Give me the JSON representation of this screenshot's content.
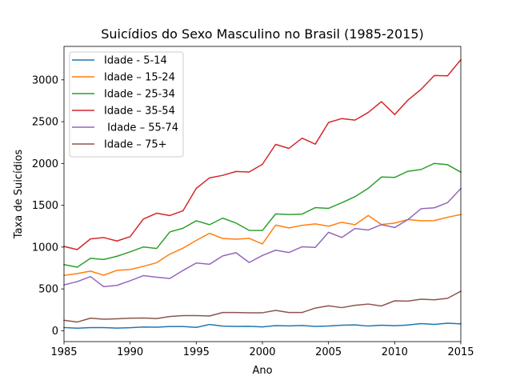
{
  "chart_data": {
    "type": "line",
    "title": "Suicídios do Sexo Masculino no Brasil (1985-2015)",
    "xlabel": "Ano",
    "ylabel": "Taxa de Suicídios",
    "xlim": [
      1985,
      2015
    ],
    "ylim": [
      -130,
      3400
    ],
    "xticks": [
      1985,
      1990,
      1995,
      2000,
      2005,
      2010,
      2015
    ],
    "yticks": [
      0,
      500,
      1000,
      1500,
      2000,
      2500,
      3000
    ],
    "grid": false,
    "legend_position": "top-left",
    "x": [
      1985,
      1986,
      1987,
      1988,
      1989,
      1990,
      1991,
      1992,
      1993,
      1994,
      1995,
      1996,
      1997,
      1998,
      1999,
      2000,
      2001,
      2002,
      2003,
      2004,
      2005,
      2006,
      2007,
      2008,
      2009,
      2010,
      2011,
      2012,
      2013,
      2014,
      2015
    ],
    "series": [
      {
        "name": "Idade - 5-14",
        "color": "#1f77b4",
        "values": [
          38,
          30,
          37,
          38,
          32,
          36,
          44,
          42,
          51,
          50,
          40,
          75,
          55,
          52,
          53,
          46,
          61,
          58,
          63,
          52,
          56,
          66,
          70,
          56,
          66,
          60,
          68,
          85,
          76,
          90,
          82
        ]
      },
      {
        "name": "Idade – 15-24",
        "color": "#ff7f0e",
        "values": [
          662,
          683,
          713,
          664,
          722,
          732,
          770,
          813,
          916,
          988,
          1080,
          1165,
          1103,
          1095,
          1105,
          1038,
          1263,
          1230,
          1260,
          1277,
          1250,
          1297,
          1268,
          1378,
          1270,
          1287,
          1330,
          1315,
          1317,
          1357,
          1390
        ]
      },
      {
        "name": "Idade – 25-34",
        "color": "#2ca02c",
        "values": [
          791,
          760,
          866,
          852,
          890,
          943,
          1002,
          983,
          1181,
          1226,
          1315,
          1268,
          1347,
          1288,
          1200,
          1198,
          1397,
          1390,
          1395,
          1472,
          1463,
          1530,
          1603,
          1703,
          1838,
          1833,
          1907,
          1928,
          2001,
          1985,
          1896
        ]
      },
      {
        "name": "Idade – 35-54",
        "color": "#d62728",
        "values": [
          1008,
          970,
          1098,
          1114,
          1073,
          1125,
          1335,
          1405,
          1377,
          1435,
          1702,
          1828,
          1858,
          1904,
          1898,
          1990,
          2228,
          2180,
          2303,
          2231,
          2490,
          2537,
          2519,
          2610,
          2740,
          2585,
          2757,
          2887,
          3052,
          3049,
          3240
        ]
      },
      {
        "name": " Idade – 55-74",
        "color": "#9467bd",
        "values": [
          548,
          587,
          648,
          528,
          542,
          598,
          659,
          640,
          625,
          721,
          810,
          795,
          895,
          933,
          816,
          900,
          963,
          935,
          1004,
          996,
          1177,
          1115,
          1222,
          1204,
          1268,
          1234,
          1329,
          1459,
          1470,
          1532,
          1700
        ]
      },
      {
        "name": "Idade – 75+",
        "color": "#8c564b",
        "values": [
          125,
          104,
          150,
          138,
          143,
          150,
          152,
          145,
          170,
          181,
          181,
          176,
          218,
          218,
          215,
          215,
          243,
          218,
          218,
          271,
          298,
          276,
          304,
          319,
          296,
          358,
          354,
          377,
          370,
          388,
          472
        ]
      }
    ]
  }
}
